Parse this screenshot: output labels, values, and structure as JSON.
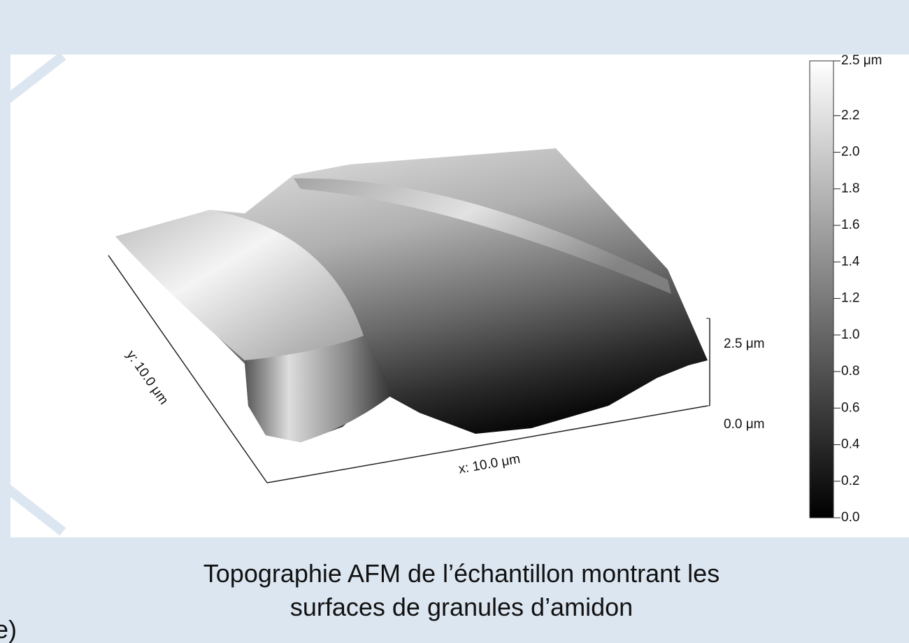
{
  "figure": {
    "colorbar": {
      "ticks": [
        {
          "value": 2.5,
          "label": "2.5 μm"
        },
        {
          "value": 2.2,
          "label": "2.2"
        },
        {
          "value": 2.0,
          "label": "2.0"
        },
        {
          "value": 1.8,
          "label": "1.8"
        },
        {
          "value": 1.6,
          "label": "1.6"
        },
        {
          "value": 1.4,
          "label": "1.4"
        },
        {
          "value": 1.2,
          "label": "1.2"
        },
        {
          "value": 1.0,
          "label": "1.0"
        },
        {
          "value": 0.8,
          "label": "0.8"
        },
        {
          "value": 0.6,
          "label": "0.6"
        },
        {
          "value": 0.4,
          "label": "0.4"
        },
        {
          "value": 0.2,
          "label": "0.2"
        },
        {
          "value": 0.0,
          "label": "0.0"
        }
      ]
    },
    "z_axis": {
      "top": "2.5 μm",
      "bottom": "0.0 μm"
    },
    "x_axis": "x: 10.0 μm",
    "y_axis": "y: 10.0 μm"
  },
  "caption": {
    "line1": "Topographie AFM de l’échantillon montrant les",
    "line2": "surfaces de granules d’amidon"
  },
  "side_label": "e)"
}
